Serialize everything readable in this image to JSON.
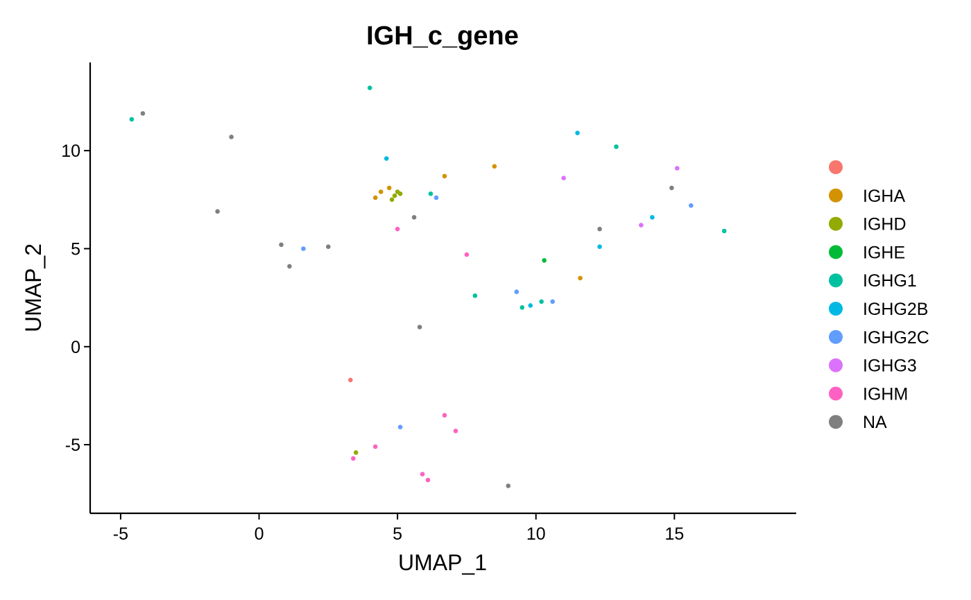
{
  "chart_data": {
    "type": "scatter",
    "title": "IGH_c_gene",
    "xlabel": "UMAP_1",
    "ylabel": "UMAP_2",
    "xlim": [
      -6.1,
      19.4
    ],
    "ylim": [
      -8.5,
      14.5
    ],
    "x_ticks": [
      {
        "value": -5,
        "label": "-5"
      },
      {
        "value": 0,
        "label": "0"
      },
      {
        "value": 5,
        "label": "5"
      },
      {
        "value": 10,
        "label": "10"
      },
      {
        "value": 15,
        "label": "15"
      }
    ],
    "y_ticks": [
      {
        "value": -5,
        "label": "-5"
      },
      {
        "value": 0,
        "label": "0"
      },
      {
        "value": 5,
        "label": "5"
      },
      {
        "value": 10,
        "label": "10"
      }
    ],
    "grid": false,
    "legend_position": "right",
    "series": [
      {
        "name": "",
        "color": "#F8766D",
        "points": [
          [
            3.3,
            -1.7
          ]
        ]
      },
      {
        "name": "IGHA",
        "color": "#D39200",
        "points": [
          [
            8.5,
            9.2
          ],
          [
            4.4,
            7.9
          ],
          [
            4.7,
            8.1
          ],
          [
            6.7,
            8.7
          ],
          [
            11.6,
            3.5
          ],
          [
            4.2,
            7.6
          ]
        ]
      },
      {
        "name": "IGHD",
        "color": "#93AA00",
        "points": [
          [
            4.9,
            7.7
          ],
          [
            5.0,
            7.9
          ],
          [
            4.8,
            7.5
          ],
          [
            3.5,
            -5.4
          ],
          [
            5.1,
            7.8
          ]
        ]
      },
      {
        "name": "IGHE",
        "color": "#00BA38",
        "points": [
          [
            10.3,
            4.4
          ]
        ]
      },
      {
        "name": "IGHG1",
        "color": "#00C19F",
        "points": [
          [
            -4.6,
            11.6
          ],
          [
            4.0,
            13.2
          ],
          [
            7.8,
            2.6
          ],
          [
            9.5,
            2.0
          ],
          [
            6.2,
            7.8
          ],
          [
            12.9,
            10.2
          ],
          [
            16.8,
            5.9
          ],
          [
            10.2,
            2.3
          ]
        ]
      },
      {
        "name": "IGHG2B",
        "color": "#00B9E3",
        "points": [
          [
            4.6,
            9.6
          ],
          [
            9.8,
            2.1
          ],
          [
            11.5,
            10.9
          ],
          [
            14.2,
            6.6
          ],
          [
            12.3,
            5.1
          ]
        ]
      },
      {
        "name": "IGHG2C",
        "color": "#619CFF",
        "points": [
          [
            1.6,
            5.0
          ],
          [
            6.4,
            7.6
          ],
          [
            10.6,
            2.3
          ],
          [
            15.6,
            7.2
          ],
          [
            9.3,
            2.8
          ],
          [
            5.1,
            -4.1
          ]
        ]
      },
      {
        "name": "IGHG3",
        "color": "#DB72FB",
        "points": [
          [
            13.8,
            6.2
          ],
          [
            11.0,
            8.6
          ],
          [
            15.1,
            9.1
          ]
        ]
      },
      {
        "name": "IGHM",
        "color": "#FF61C3",
        "points": [
          [
            7.5,
            4.7
          ],
          [
            5.0,
            6.0
          ],
          [
            6.1,
            -6.8
          ],
          [
            3.4,
            -5.7
          ],
          [
            7.1,
            -4.3
          ],
          [
            6.7,
            -3.5
          ],
          [
            5.9,
            -6.5
          ],
          [
            4.2,
            -5.1
          ]
        ]
      },
      {
        "name": "NA",
        "color": "#7F7F7F",
        "points": [
          [
            -4.2,
            11.9
          ],
          [
            -1.0,
            10.7
          ],
          [
            0.8,
            5.2
          ],
          [
            2.5,
            5.1
          ],
          [
            5.8,
            1.0
          ],
          [
            1.1,
            4.1
          ],
          [
            -1.5,
            6.9
          ],
          [
            9.0,
            -7.1
          ],
          [
            5.6,
            6.6
          ],
          [
            12.3,
            6.0
          ],
          [
            14.9,
            8.1
          ]
        ]
      }
    ]
  },
  "legend": {
    "items": [
      {
        "label": "",
        "color": "#F8766D"
      },
      {
        "label": "IGHA",
        "color": "#D39200"
      },
      {
        "label": "IGHD",
        "color": "#93AA00"
      },
      {
        "label": "IGHE",
        "color": "#00BA38"
      },
      {
        "label": "IGHG1",
        "color": "#00C19F"
      },
      {
        "label": "IGHG2B",
        "color": "#00B9E3"
      },
      {
        "label": "IGHG2C",
        "color": "#619CFF"
      },
      {
        "label": "IGHG3",
        "color": "#DB72FB"
      },
      {
        "label": "IGHM",
        "color": "#FF61C3"
      },
      {
        "label": "NA",
        "color": "#7F7F7F"
      }
    ]
  }
}
